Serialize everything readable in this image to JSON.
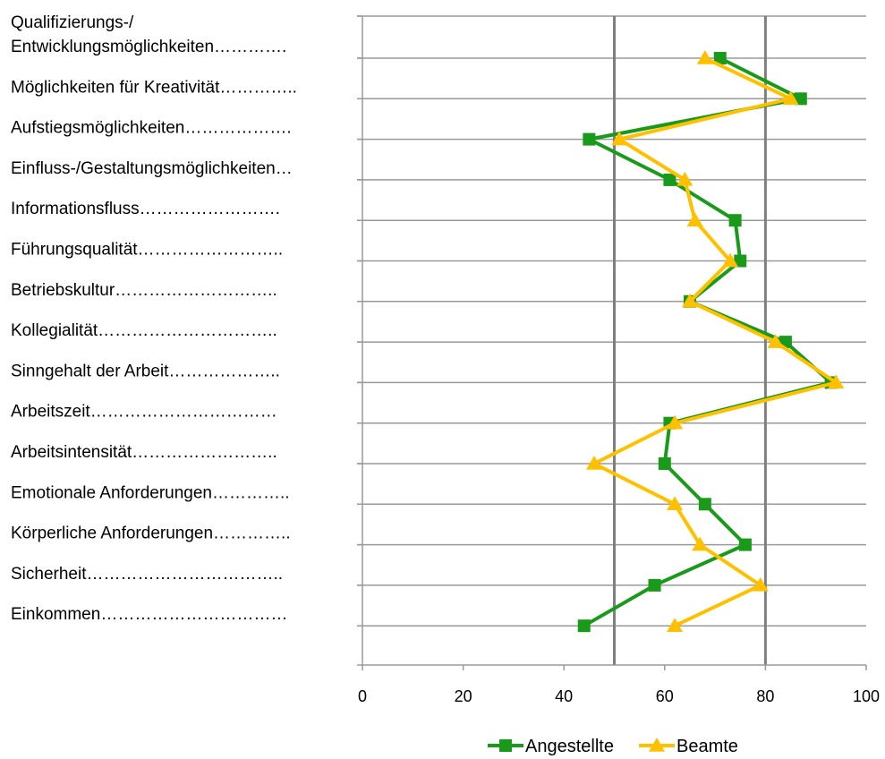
{
  "chart_data": {
    "type": "line",
    "orientation": "horizontal",
    "categories": [
      "Qualifizierungs-/\nEntwicklungsmöglichkeiten………….",
      "Möglichkeiten für Kreativität…………..",
      "Aufstiegsmöglichkeiten……………….",
      "Einfluss-/Gestaltungsmöglichkeiten…",
      "Informationsfluss…………………….",
      "Führungsqualität……………………..",
      "Betriebskultur………………………..",
      "Kollegialität…………………………..",
      "Sinngehalt der Arbeit………………..",
      "Arbeitszeit……………………………",
      "Arbeitsintensität……………………..",
      "Emotionale Anforderungen…………..",
      "Körperliche Anforderungen…………..",
      "Sicherheit……………………………..",
      "Einkommen……………………………"
    ],
    "series": [
      {
        "name": "Angestellte",
        "color": "#1a9a1a",
        "marker": "square",
        "values": [
          71,
          87,
          45,
          61,
          74,
          75,
          65,
          84,
          93,
          61,
          60,
          68,
          76,
          58,
          44
        ]
      },
      {
        "name": "Beamte",
        "color": "#ffc000",
        "marker": "triangle",
        "values": [
          68,
          85,
          51,
          64,
          66,
          73,
          65,
          82,
          94,
          62,
          46,
          62,
          67,
          79,
          62
        ]
      }
    ],
    "xlim": [
      0,
      100
    ],
    "xticks": [
      "0",
      "20",
      "40",
      "60",
      "80",
      "100"
    ],
    "reference_lines": [
      50,
      80
    ],
    "grid": true,
    "legend": "bottom"
  }
}
